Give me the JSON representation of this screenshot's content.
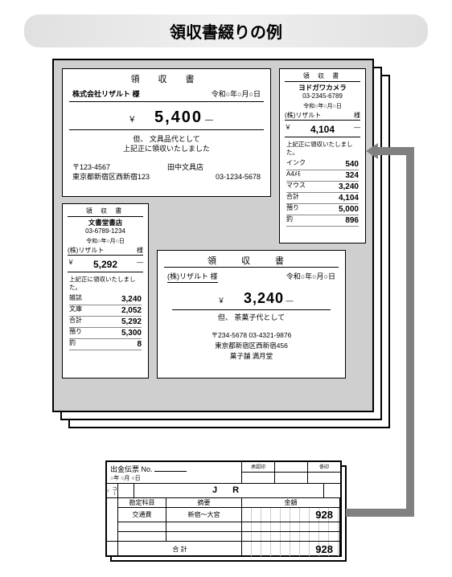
{
  "title": "領収書綴りの例",
  "receiptA": {
    "heading": "領 収 書",
    "customer": "株式会社リザルト 様",
    "date": "令和○年○月○日",
    "currency": "￥",
    "amount": "5,400",
    "amount_suffix": "—",
    "note1": "但、 文具品代として",
    "note2": "上記正に領収いたしました",
    "postal": "〒123-4567",
    "store": "田中文具店",
    "address": "東京都新宿区西新宿123",
    "tel": "03-1234-5678"
  },
  "receiptB": {
    "heading": "領 収 書",
    "store": "ヨドガワカメラ",
    "tel": "03-2345-6789",
    "date": "令和○年○月○日",
    "customer_prefix": "(株)リザルト",
    "customer_suffix": "様",
    "currency": "￥",
    "amount": "4,104",
    "amount_suffix": "—",
    "note": "上記正に領収いたしました。",
    "items": [
      {
        "label": "インク",
        "value": "540"
      },
      {
        "label": "A4ﾒﾓ",
        "value": "324"
      },
      {
        "label": "マウス",
        "value": "3,240"
      },
      {
        "label": "合計",
        "value": "4,104"
      },
      {
        "label": "預り",
        "value": "5,000"
      },
      {
        "label": "釣",
        "value": "896"
      }
    ]
  },
  "receiptC": {
    "heading": "領 収 書",
    "store": "文書堂書店",
    "tel": "03-6789-1234",
    "date": "令和○年○月○日",
    "customer_prefix": "(株)リザルト",
    "customer_suffix": "様",
    "currency": "￥",
    "amount": "5,292",
    "amount_suffix": "—",
    "note": "上記正に領収いたしました。",
    "items": [
      {
        "label": "雑誌",
        "value": "3,240"
      },
      {
        "label": "文庫",
        "value": "2,052"
      },
      {
        "label": "合計",
        "value": "5,292"
      },
      {
        "label": "預り",
        "value": "5,300"
      },
      {
        "label": "釣",
        "value": "8"
      }
    ]
  },
  "receiptD": {
    "heading": "領 収 書",
    "customer": "(株)リザルト 様",
    "date": "令和○年○月○日",
    "currency": "￥",
    "amount": "3,240",
    "amount_suffix": "—",
    "note": "但、 茶菓子代として",
    "postal_tel": "〒234-5678  03-4321-9876",
    "address": "東京都新宿区西新宿456",
    "store_line": "菓子舗  満月堂"
  },
  "slip": {
    "title": "出金伝票",
    "no_label": "No.",
    "date": "○年  ○月  ○日",
    "approval_labels": [
      "承認印",
      "係印"
    ],
    "jr_label": "J  R",
    "code_label": "コード",
    "headers": [
      "勘定科目",
      "摘要",
      "金額"
    ],
    "row": {
      "account": "交通費",
      "desc": "新宿～大宮",
      "amount": "928"
    },
    "total_label": "合  計",
    "total": "928"
  },
  "arrow": {
    "color": "#808080"
  }
}
